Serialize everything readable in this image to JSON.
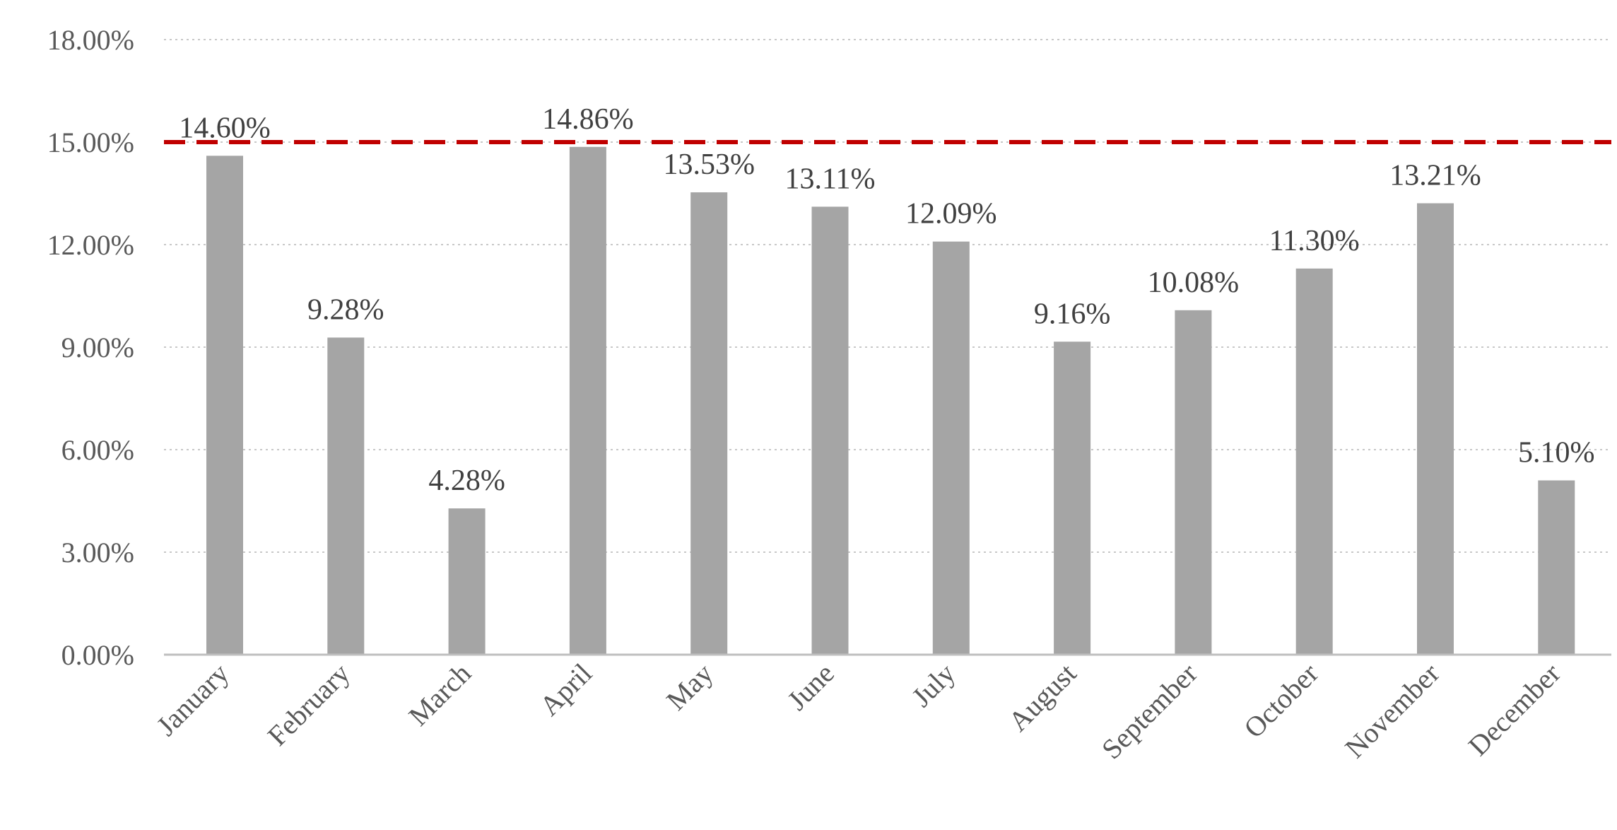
{
  "chart_data": {
    "type": "bar",
    "title": "",
    "xlabel": "",
    "ylabel": "",
    "categories": [
      "January",
      "February",
      "March",
      "April",
      "May",
      "June",
      "July",
      "August",
      "September",
      "October",
      "November",
      "December"
    ],
    "values": [
      14.6,
      9.28,
      4.28,
      14.86,
      13.53,
      13.11,
      12.09,
      9.16,
      10.08,
      11.3,
      13.21,
      5.1
    ],
    "data_labels": [
      "14.60%",
      "9.28%",
      "4.28%",
      "14.86%",
      "13.53%",
      "13.11%",
      "12.09%",
      "9.16%",
      "10.08%",
      "11.30%",
      "13.21%",
      "5.10%"
    ],
    "ylim": [
      0,
      18
    ],
    "yticks": [
      0,
      3,
      6,
      9,
      12,
      15,
      18
    ],
    "ytick_labels": [
      "0.00%",
      "3.00%",
      "6.00%",
      "9.00%",
      "12.00%",
      "15.00%",
      "18.00%"
    ],
    "reference_line": {
      "value": 15,
      "style": "dashed",
      "color": "#c00000"
    },
    "grid": true,
    "legend": "none",
    "colors": {
      "bar": "#a5a5a5",
      "gridline": "#c8c8c8",
      "axis": "#bfbfbf",
      "text": "#595959",
      "data_label": "#404040"
    }
  }
}
